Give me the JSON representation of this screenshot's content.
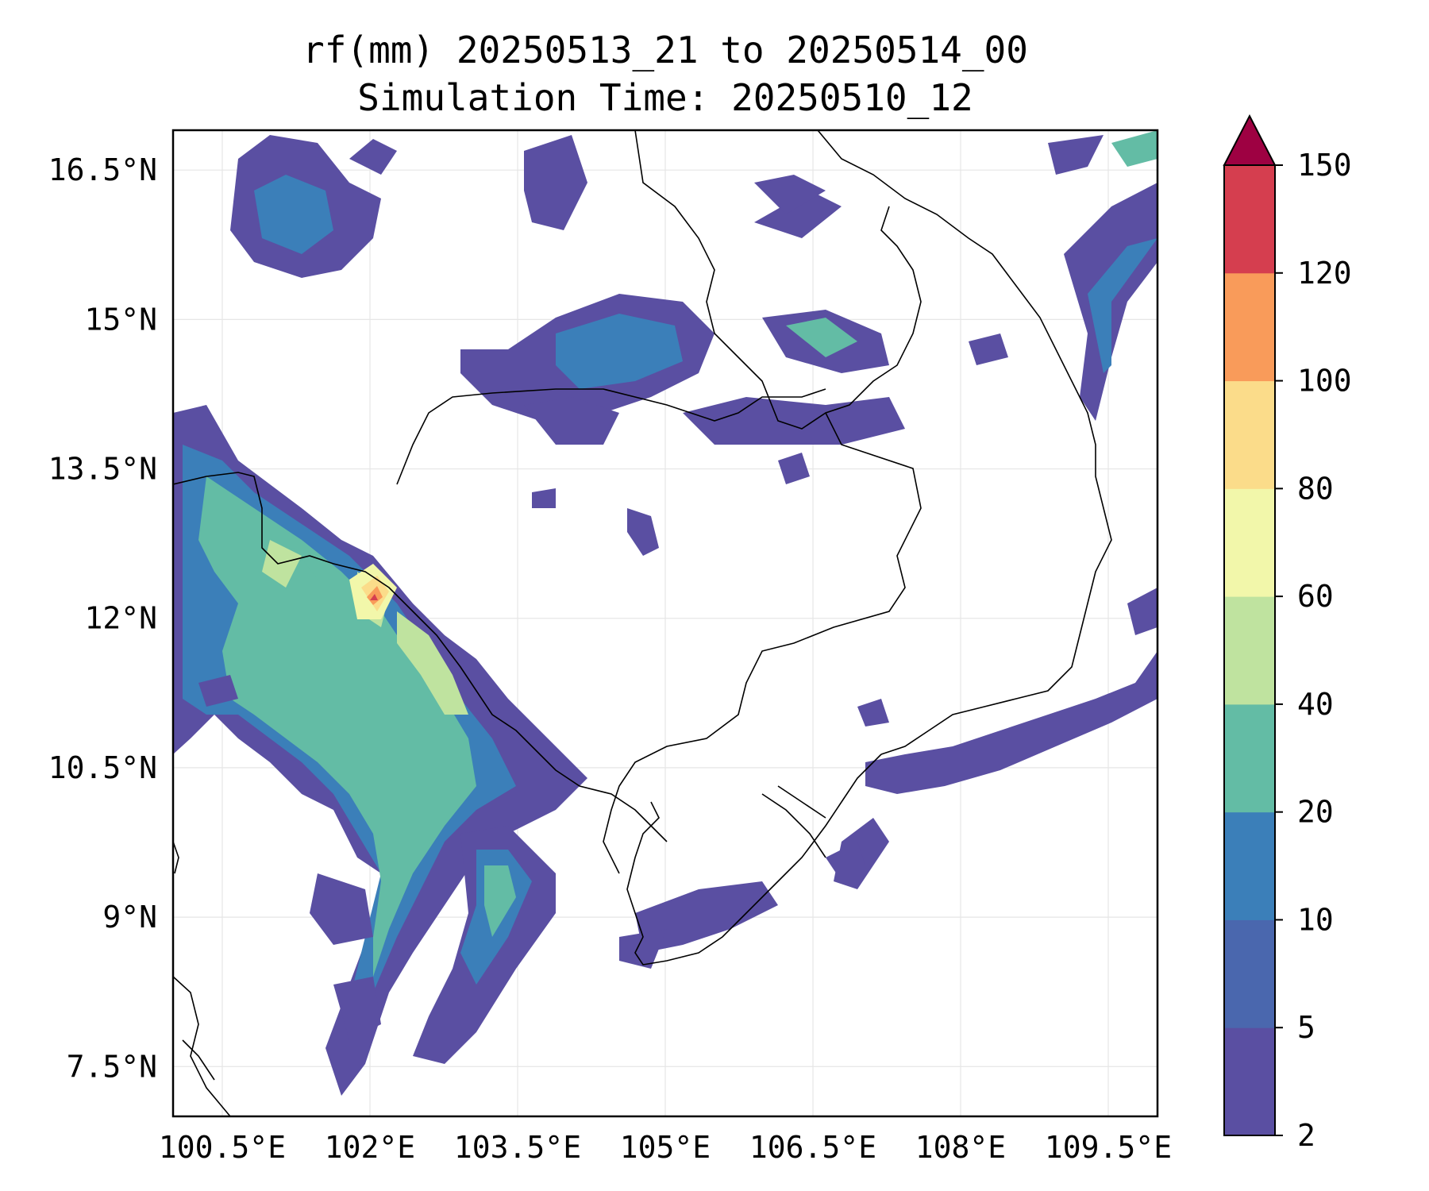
{
  "title": {
    "line1": "rf(mm) 20250513_21 to 20250514_00",
    "line2": "Simulation Time: 20250510_12"
  },
  "map": {
    "lon_range": [
      100.0,
      110.0
    ],
    "lat_range": [
      7.0,
      16.9
    ],
    "lon_ticks": [
      "100.5°E",
      "102°E",
      "103.5°E",
      "105°E",
      "106.5°E",
      "108°E",
      "109.5°E"
    ],
    "lat_ticks": [
      "16.5°N",
      "15°N",
      "13.5°N",
      "12°N",
      "10.5°N",
      "9°N",
      "7.5°N"
    ],
    "grid": true,
    "coastlines": true,
    "borders": true
  },
  "colorbar": {
    "levels": [
      "2",
      "5",
      "10",
      "20",
      "40",
      "60",
      "80",
      "100",
      "120",
      "150"
    ],
    "colors": [
      "#5a4fa2",
      "#4a67ae",
      "#3b7fb9",
      "#63bca5",
      "#bfe39f",
      "#f2f7aa",
      "#fbdc8a",
      "#f99b5a",
      "#d53e4f"
    ],
    "extend_color": "#9e0142",
    "extend": "max"
  },
  "precip_field": {
    "units": "mm",
    "max_region": "Gulf of Thailand coast near 102.1°E 12.3°N"
  }
}
